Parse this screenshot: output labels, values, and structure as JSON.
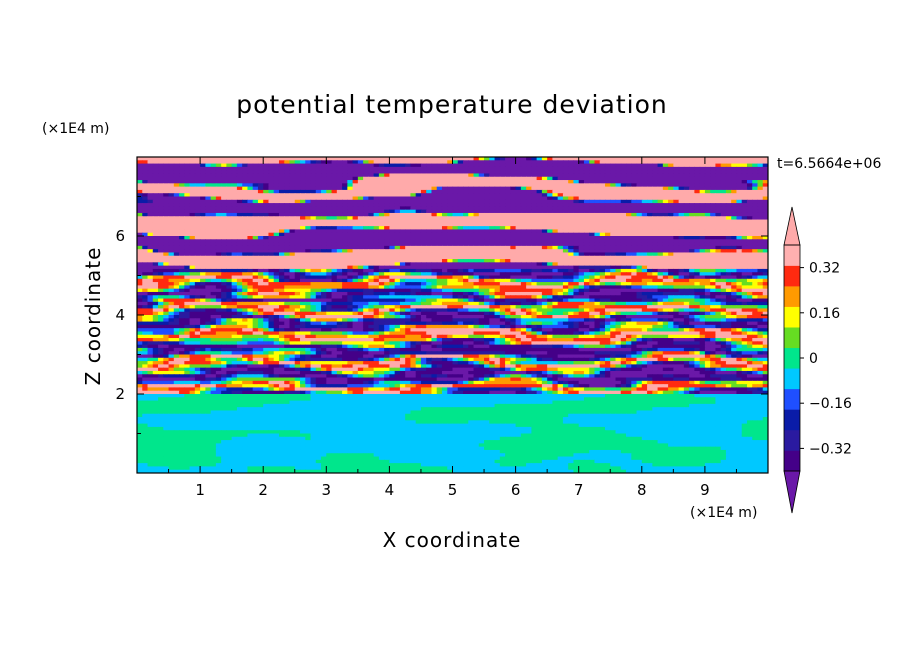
{
  "chart_data": {
    "type": "heatmap",
    "title": "potential temperature deviation",
    "xlabel": "X coordinate",
    "ylabel": "Z coordinate",
    "x_unit": "(×1E4 m)",
    "y_unit": "(×1E4 m)",
    "time_label": "t=6.5664e+06",
    "xlim": [
      0,
      10
    ],
    "ylim": [
      0,
      8
    ],
    "x_ticks": [
      1,
      2,
      3,
      4,
      5,
      6,
      7,
      8,
      9
    ],
    "x_tick_labels": [
      "1",
      "2",
      "3",
      "4",
      "5",
      "6",
      "7",
      "8",
      "9"
    ],
    "y_ticks": [
      2,
      4,
      6
    ],
    "y_tick_labels": [
      "2",
      "4",
      "6"
    ],
    "colorbar": {
      "levels": [
        -0.4,
        -0.32,
        -0.24,
        -0.16,
        -0.08,
        0,
        0.08,
        0.16,
        0.24,
        0.32,
        0.4
      ],
      "colors": [
        "#440088",
        "#2a1aa0",
        "#0a1ca8",
        "#1f4fff",
        "#00c8ff",
        "#00e68c",
        "#66dd22",
        "#ffff00",
        "#ff9a00",
        "#ff2a10",
        "#ffb0b0"
      ],
      "under_color": "#6a18a8",
      "over_color": "#ffaaaa",
      "tick_values": [
        0.32,
        0.16,
        0,
        -0.16,
        -0.32
      ],
      "tick_labels": [
        "0.32",
        "0.16",
        "0",
        "−0.16",
        "−0.32"
      ],
      "extend": "both"
    },
    "description_layers": {
      "lower_layer_z": [
        0,
        2
      ],
      "mixing_layer_z": [
        2,
        5
      ],
      "upper_layer_z": [
        5,
        8
      ]
    }
  }
}
